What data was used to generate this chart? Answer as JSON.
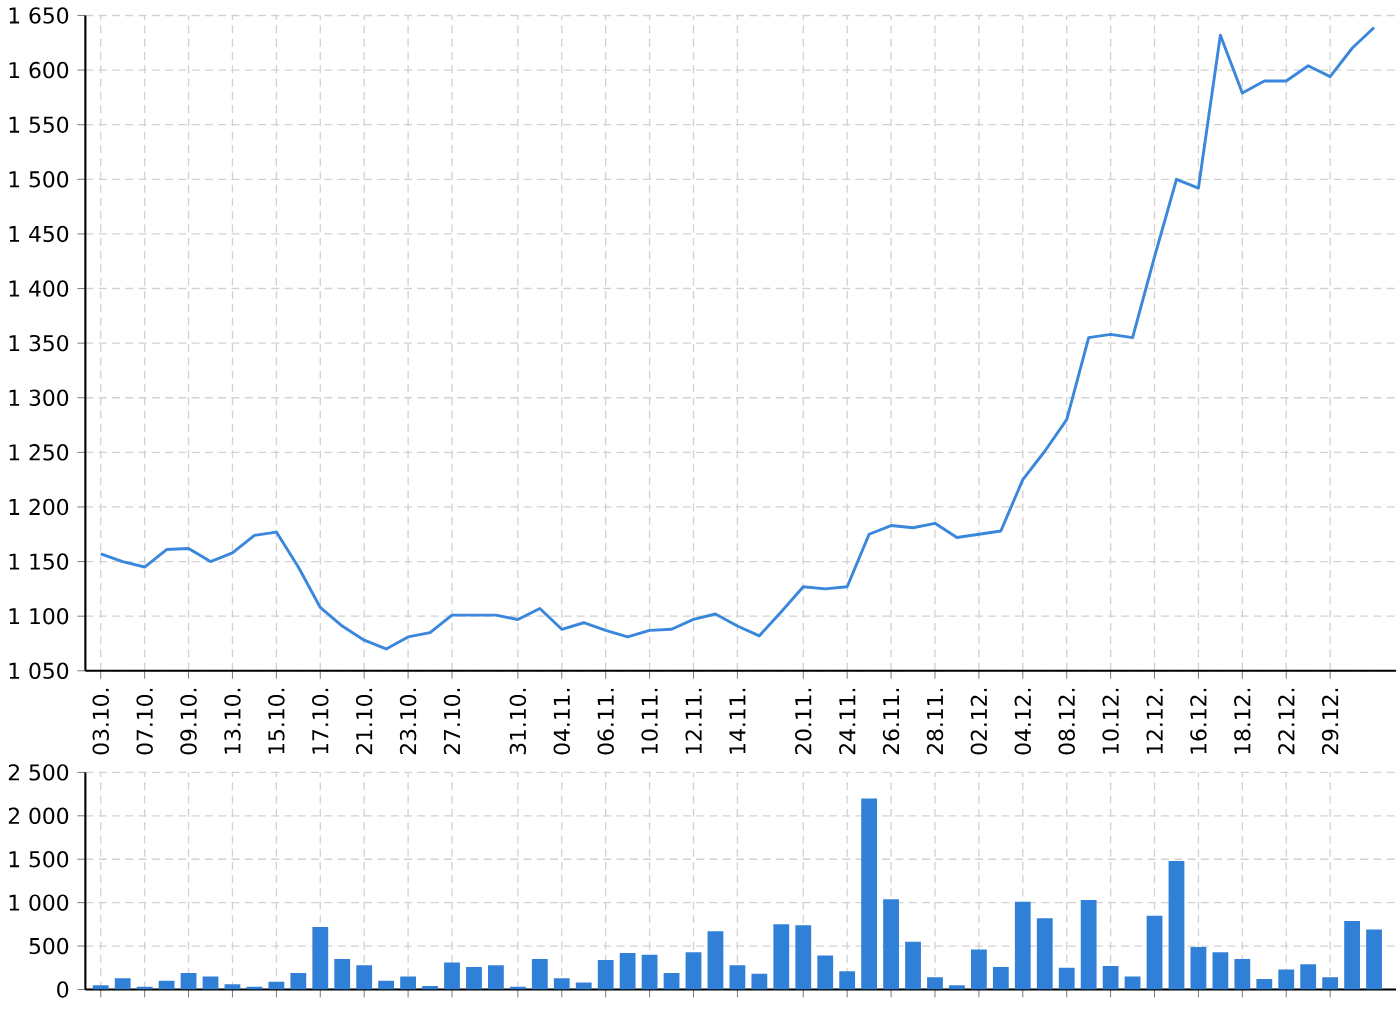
{
  "chart_data": [
    {
      "type": "line",
      "color": "#3a87dc",
      "grid": true,
      "categories": [
        "03.10.",
        null,
        "07.10.",
        null,
        "09.10.",
        null,
        "13.10.",
        null,
        "15.10.",
        null,
        "17.10.",
        null,
        "21.10.",
        null,
        "23.10.",
        null,
        "27.10.",
        null,
        null,
        "31.10.",
        null,
        "04.11.",
        null,
        "06.11.",
        null,
        "10.11.",
        null,
        "12.11.",
        null,
        "14.11.",
        null,
        null,
        "20.11.",
        null,
        "24.11.",
        null,
        "26.11.",
        null,
        "28.11.",
        null,
        "02.12.",
        null,
        "04.12.",
        null,
        "08.12.",
        null,
        "10.12.",
        null,
        "12.12.",
        null,
        "16.12.",
        null,
        "18.12.",
        null,
        "22.12.",
        null,
        "29.12.",
        null,
        null
      ],
      "values": [
        1157,
        1150,
        1145,
        1161,
        1162,
        1150,
        1158,
        1174,
        1177,
        1145,
        1108,
        1091,
        1078,
        1070,
        1081,
        1085,
        1101,
        1101,
        1101,
        1097,
        1107,
        1088,
        1094,
        1087,
        1081,
        1087,
        1088,
        1097,
        1102,
        1091,
        1082,
        1104,
        1127,
        1125,
        1127,
        1175,
        1183,
        1181,
        1185,
        1172,
        1175,
        1178,
        1225,
        1251,
        1280,
        1355,
        1358,
        1355,
        1429,
        1500,
        1492,
        1632,
        1579,
        1590,
        1590,
        1604,
        1594,
        1620,
        1639
      ],
      "ylim": [
        1050,
        1650
      ],
      "yticks": [
        {
          "value": 1050,
          "label": "1 050"
        },
        {
          "value": 1100,
          "label": "1 100"
        },
        {
          "value": 1150,
          "label": "1 150"
        },
        {
          "value": 1200,
          "label": "1 200"
        },
        {
          "value": 1250,
          "label": "1 250"
        },
        {
          "value": 1300,
          "label": "1 300"
        },
        {
          "value": 1350,
          "label": "1 350"
        },
        {
          "value": 1400,
          "label": "1 400"
        },
        {
          "value": 1450,
          "label": "1 450"
        },
        {
          "value": 1500,
          "label": "1 500"
        },
        {
          "value": 1550,
          "label": "1 550"
        },
        {
          "value": 1600,
          "label": "1 600"
        },
        {
          "value": 1650,
          "label": "1 650"
        }
      ]
    },
    {
      "type": "bar",
      "color": "#3080d8",
      "grid": true,
      "tick_labels": "y",
      "categories": [
        "03.10.",
        null,
        "07.10.",
        null,
        "09.10.",
        null,
        "13.10.",
        null,
        "15.10.",
        null,
        "17.10.",
        null,
        "21.10.",
        null,
        "23.10.",
        null,
        "27.10.",
        null,
        null,
        "31.10.",
        null,
        "04.11.",
        null,
        "06.11.",
        null,
        "10.11.",
        null,
        "12.11.",
        null,
        "14.11.",
        null,
        null,
        "20.11.",
        null,
        "24.11.",
        null,
        "26.11.",
        null,
        "28.11.",
        null,
        "02.12.",
        null,
        "04.12.",
        null,
        "08.12.",
        null,
        "10.12.",
        null,
        "12.12.",
        null,
        "16.12.",
        null,
        "18.12.",
        null,
        "22.12.",
        null,
        "29.12.",
        null,
        null
      ],
      "values": [
        50,
        130,
        30,
        100,
        190,
        150,
        60,
        30,
        90,
        190,
        720,
        350,
        280,
        100,
        150,
        40,
        310,
        260,
        280,
        30,
        350,
        130,
        80,
        340,
        420,
        400,
        190,
        430,
        670,
        280,
        180,
        750,
        740,
        390,
        210,
        2200,
        1040,
        550,
        140,
        50,
        460,
        260,
        1010,
        820,
        250,
        1030,
        270,
        150,
        850,
        1480,
        490,
        430,
        350,
        120,
        230,
        290,
        140,
        790,
        690
      ],
      "ylim": [
        0,
        2500
      ],
      "yticks": [
        0,
        500,
        {
          "value": 1000,
          "label": "1 000"
        },
        {
          "value": 1500,
          "label": "1 500"
        },
        {
          "value": 2000,
          "label": "2 000"
        },
        {
          "value": 2500,
          "label": "2 500"
        }
      ]
    }
  ]
}
